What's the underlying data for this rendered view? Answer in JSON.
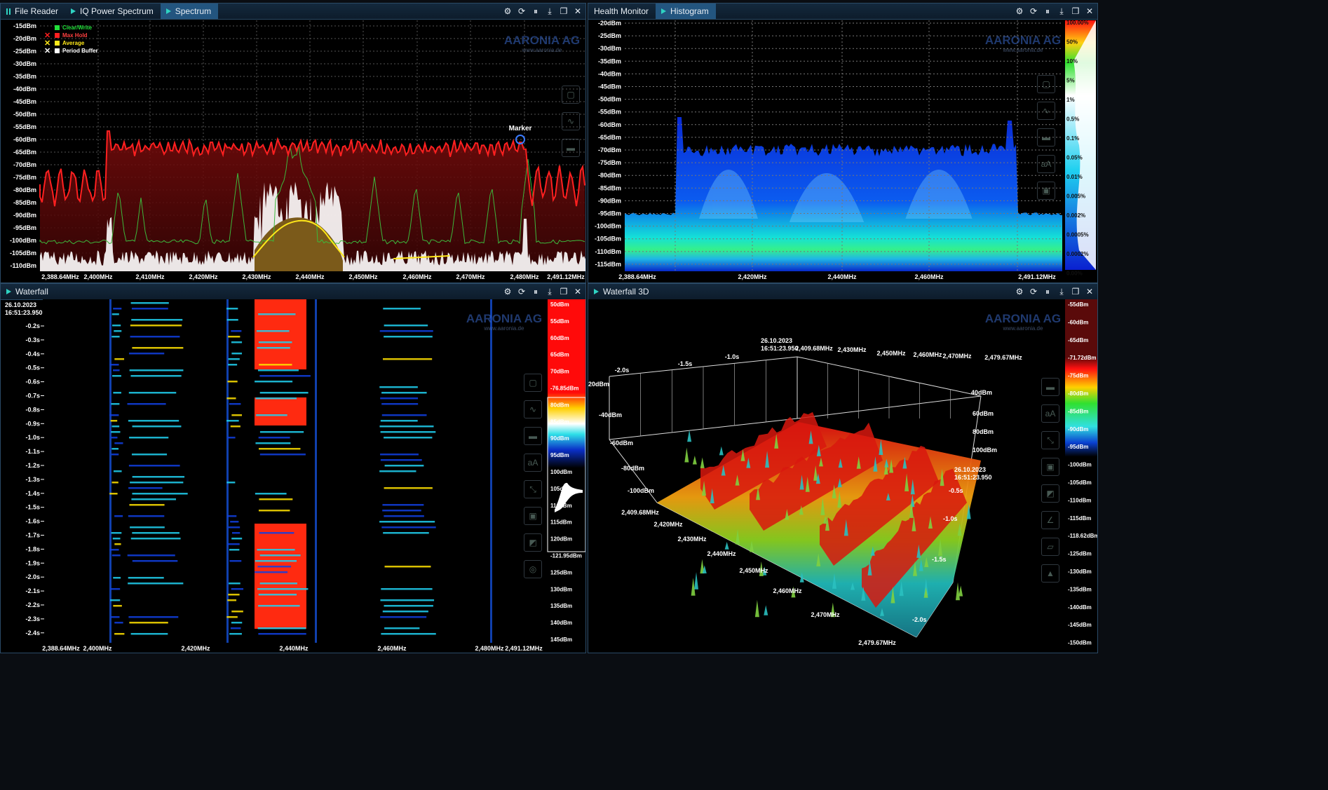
{
  "panes": {
    "spectrum": {
      "tabs": [
        {
          "label": "File Reader"
        },
        {
          "label": "IQ Power Spectrum"
        },
        {
          "label": "Spectrum"
        }
      ],
      "y_ticks": [
        "-15dBm",
        "-20dBm",
        "-25dBm",
        "-30dBm",
        "-35dBm",
        "-40dBm",
        "-45dBm",
        "-50dBm",
        "-55dBm",
        "-60dBm",
        "-65dBm",
        "-70dBm",
        "-75dBm",
        "-80dBm",
        "-85dBm",
        "-90dBm",
        "-95dBm",
        "-100dBm",
        "-105dBm",
        "-110dBm"
      ],
      "x_ticks": [
        "2,388.64MHz",
        "2,400MHz",
        "2,410MHz",
        "2,420MHz",
        "2,430MHz",
        "2,440MHz",
        "2,450MHz",
        "2,460MHz",
        "2,470MHz",
        "2,480MHz",
        "2,491.12MHz"
      ],
      "legend": [
        {
          "label": "Clear/Write",
          "color": "#22e03a"
        },
        {
          "label": "Max Hold",
          "color": "#ff2020"
        },
        {
          "label": "Average",
          "color": "#ffe81a"
        },
        {
          "label": "Period Buffer",
          "color": "#ffffff"
        }
      ],
      "marker_label": "Marker"
    },
    "histogram": {
      "tabs": [
        {
          "label": "Health Monitor"
        },
        {
          "label": "Histogram"
        }
      ],
      "y_ticks": [
        "-20dBm",
        "-25dBm",
        "-30dBm",
        "-35dBm",
        "-40dBm",
        "-45dBm",
        "-50dBm",
        "-55dBm",
        "-60dBm",
        "-65dBm",
        "-70dBm",
        "-75dBm",
        "-80dBm",
        "-85dBm",
        "-90dBm",
        "-95dBm",
        "-100dBm",
        "-105dBm",
        "-110dBm",
        "-115dBm"
      ],
      "x_ticks": [
        "2,388.64MHz",
        "2,420MHz",
        "2,440MHz",
        "2,460MHz",
        "2,491.12MHz"
      ],
      "scale_ticks": [
        "100.00%",
        "50%",
        "10%",
        "5%",
        "1%",
        "0.5%",
        "0.1%",
        "0.05%",
        "0.01%",
        "0.005%",
        "0.002%",
        "0.0005%",
        "0.0002%",
        "0.00%"
      ]
    },
    "waterfall": {
      "tabs": [
        {
          "label": "Waterfall"
        }
      ],
      "timestamp_date": "26.10.2023",
      "timestamp_time": "16:51:23.950",
      "y_ticks": [
        "-0.2s",
        "-0.3s",
        "-0.4s",
        "-0.5s",
        "-0.6s",
        "-0.7s",
        "-0.8s",
        "-0.9s",
        "-1.0s",
        "-1.1s",
        "-1.2s",
        "-1.3s",
        "-1.4s",
        "-1.5s",
        "-1.6s",
        "-1.7s",
        "-1.8s",
        "-1.9s",
        "-2.0s",
        "-2.1s",
        "-2.2s",
        "-2.3s",
        "-2.4s"
      ],
      "x_ticks": [
        "2,388.64MHz",
        "2,400MHz",
        "2,420MHz",
        "2,440MHz",
        "2,460MHz",
        "2,480MHz",
        "2,491.12MHz"
      ],
      "scale_ticks": [
        "50dBm",
        "55dBm",
        "60dBm",
        "65dBm",
        "70dBm",
        "-76.85dBm",
        "80dBm",
        "85dBm",
        "90dBm",
        "95dBm",
        "100dBm",
        "105dBm",
        "110dBm",
        "115dBm",
        "120dBm",
        "-121.95dBm",
        "125dBm",
        "130dBm",
        "135dBm",
        "140dBm",
        "145dBm"
      ]
    },
    "waterfall3d": {
      "tabs": [
        {
          "label": "Waterfall 3D"
        }
      ],
      "time_ticks_top": [
        "-2.0s",
        "-1.5s",
        "-1.0s"
      ],
      "timestamp_top": "26.10.2023\n16:51:23.950",
      "timestamp_top_date": "26.10.2023",
      "timestamp_top_time": "16:51:23.950",
      "freq_top": [
        "2,409.68MHz",
        "2,430MHz",
        "2,450MHz",
        "2,460MHz",
        "2,470MHz",
        "2,479.67MHz"
      ],
      "level_left": [
        "-20dBm",
        "-40dBm",
        "-60dBm",
        "-80dBm",
        "-100dBm"
      ],
      "level_right": [
        "40dBm",
        "60dBm",
        "80dBm",
        "100dBm"
      ],
      "timestamp_right_date": "26.10.2023",
      "timestamp_right_time": "16:51:23.950",
      "time_ticks_right": [
        "-0.5s",
        "-1.0s",
        "-1.5s",
        "-2.0s"
      ],
      "freq_bottom": [
        "2,409.68MHz",
        "2,420MHz",
        "2,430MHz",
        "2,440MHz",
        "2,450MHz",
        "2,460MHz",
        "2,470MHz",
        "2,479.67MHz"
      ],
      "scale_ticks": [
        "-55dBm",
        "-60dBm",
        "-65dBm",
        "-71.72dBm",
        "-75dBm",
        "-80dBm",
        "-85dBm",
        "-90dBm",
        "-95dBm",
        "-100dBm",
        "-105dBm",
        "-110dBm",
        "-115dBm",
        "-118.62dBm",
        "-125dBm",
        "-130dBm",
        "-135dBm",
        "-140dBm",
        "-145dBm",
        "-150dBm"
      ]
    }
  },
  "watermark": {
    "brand": "AARONIA AG",
    "url": "www.aaronia.de"
  },
  "colors": {
    "accent": "#2fd3c2",
    "maxhold": "#ff2020",
    "clearwrite": "#22e03a",
    "average": "#ffe81a",
    "frame": "#2a4a66"
  }
}
